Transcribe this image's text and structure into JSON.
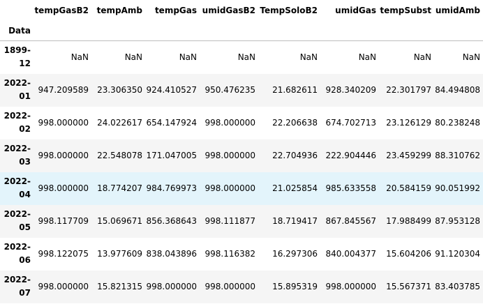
{
  "table": {
    "index_name": "Data",
    "columns": [
      "tempGasB2",
      "tempAmb",
      "tempGas",
      "umidGasB2",
      "TempSoloB2",
      "umidGas",
      "tempSubst",
      "umidAmb"
    ],
    "rows": [
      {
        "index": "1899-12",
        "index_lines": [
          "1899-",
          "12"
        ],
        "values": [
          "NaN",
          "NaN",
          "NaN",
          "NaN",
          "NaN",
          "NaN",
          "NaN",
          "NaN"
        ]
      },
      {
        "index": "2022-01",
        "index_lines": [
          "2022-",
          "01"
        ],
        "values": [
          "947.209589",
          "23.306350",
          "924.410527",
          "950.476235",
          "21.682611",
          "928.340209",
          "22.301797",
          "84.494808"
        ]
      },
      {
        "index": "2022-02",
        "index_lines": [
          "2022-",
          "02"
        ],
        "values": [
          "998.000000",
          "24.022617",
          "654.147924",
          "998.000000",
          "22.206638",
          "674.702713",
          "23.126129",
          "80.238248"
        ]
      },
      {
        "index": "2022-03",
        "index_lines": [
          "2022-",
          "03"
        ],
        "values": [
          "998.000000",
          "22.548078",
          "171.047005",
          "998.000000",
          "22.704936",
          "222.904446",
          "23.459299",
          "88.310762"
        ]
      },
      {
        "index": "2022-04",
        "index_lines": [
          "2022-",
          "04"
        ],
        "values": [
          "998.000000",
          "18.774207",
          "984.769973",
          "998.000000",
          "21.025854",
          "985.633558",
          "20.584159",
          "90.051992"
        ]
      },
      {
        "index": "2022-05",
        "index_lines": [
          "2022-",
          "05"
        ],
        "values": [
          "998.117709",
          "15.069671",
          "856.368643",
          "998.111877",
          "18.719417",
          "867.845567",
          "17.988499",
          "87.953128"
        ]
      },
      {
        "index": "2022-06",
        "index_lines": [
          "2022-",
          "06"
        ],
        "values": [
          "998.122075",
          "13.977609",
          "838.043896",
          "998.116382",
          "16.297306",
          "840.004377",
          "15.604206",
          "91.120304"
        ]
      },
      {
        "index": "2022-07",
        "index_lines": [
          "2022-",
          "07"
        ],
        "values": [
          "998.000000",
          "15.821315",
          "998.000000",
          "998.000000",
          "15.895319",
          "998.000000",
          "15.567371",
          "83.403785"
        ]
      }
    ],
    "hovered_row": 4
  },
  "colors": {
    "striped_row": "#f5f5f5",
    "hover_row": "#e3f4fb",
    "header_border": "#bdbdbd",
    "text": "#000000"
  }
}
